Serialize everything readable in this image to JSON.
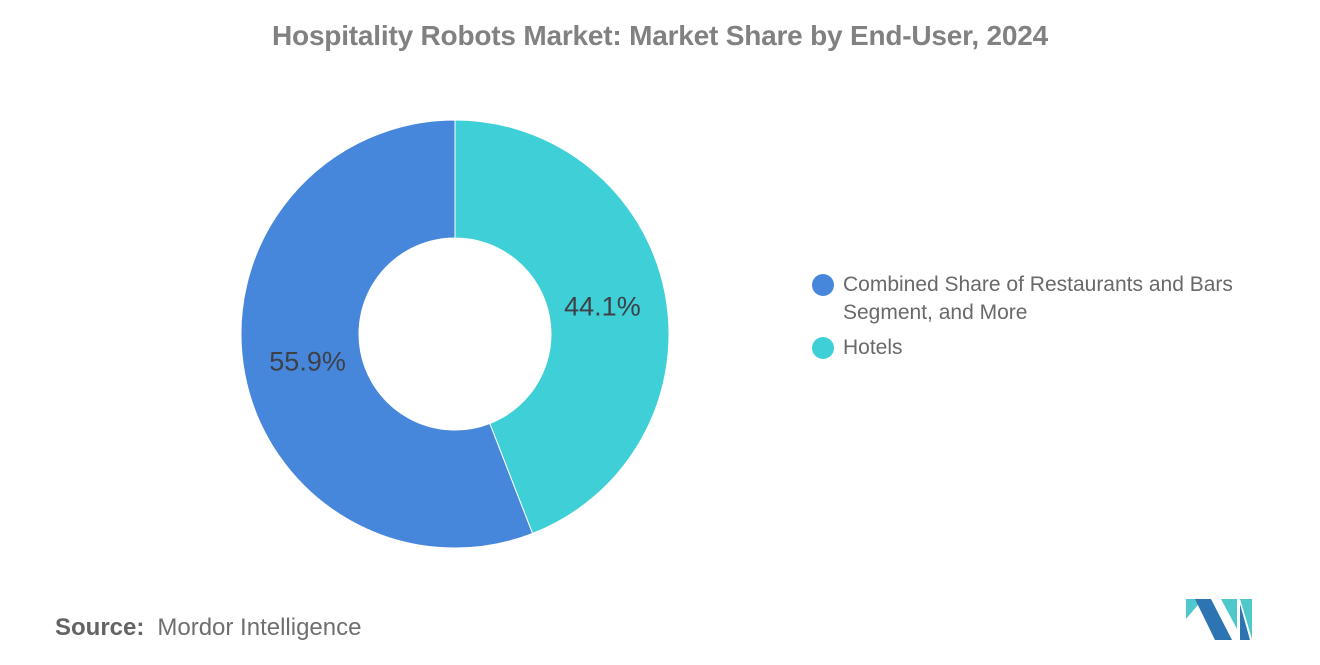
{
  "title": "Hospitality Robots Market: Market Share by End-User, 2024",
  "chart_data": {
    "type": "pie",
    "subtype": "donut",
    "title": "Hospitality Robots Market: Market Share by End-User, 2024",
    "inner_radius_ratio": 0.45,
    "start_angle_deg": 0,
    "clockwise_order_from_top": [
      "Hotels",
      "Combined Share of Restaurants and Bars Segment, and More"
    ],
    "slices": [
      {
        "label": "Combined Share of Restaurants and Bars Segment, and More",
        "value": 55.9,
        "display": "55.9%",
        "color": "#4787DB"
      },
      {
        "label": "Hotels",
        "value": 44.1,
        "display": "44.1%",
        "color": "#3FCFD6"
      }
    ],
    "legend_position": "right",
    "data_labels": "percent-inside-slices",
    "data_label_color": "#3d4046"
  },
  "source": {
    "label": "Source:",
    "value": "Mordor Intelligence"
  },
  "logo": {
    "name": "mordor-intelligence-logo",
    "blue": "#2D74B2",
    "teal": "#4FC8CB"
  }
}
